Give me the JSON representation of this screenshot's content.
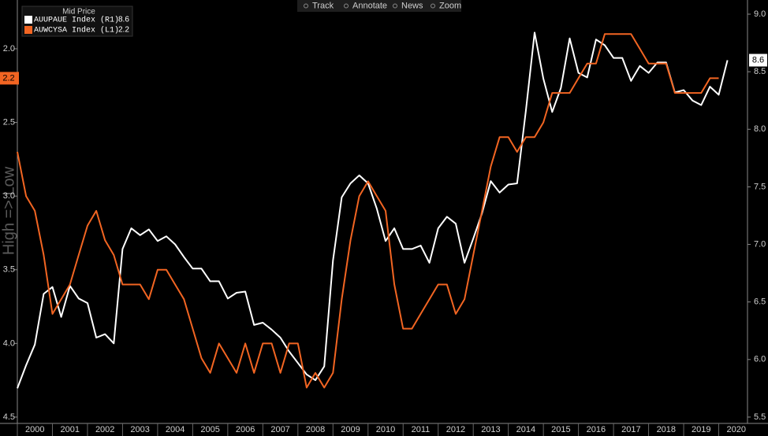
{
  "toolbar": [
    "Track",
    "Annotate",
    "News",
    "Zoom"
  ],
  "chart_data": {
    "type": "line",
    "legend_title": "Mid Price",
    "y_axis_label": "High => Low",
    "legend": "top-left",
    "y_inverted": true,
    "x": [
      2000,
      2000.25,
      2000.5,
      2000.75,
      2001,
      2001.25,
      2001.5,
      2001.75,
      2002,
      2002.25,
      2002.5,
      2002.75,
      2003,
      2003.25,
      2003.5,
      2003.75,
      2004,
      2004.25,
      2004.5,
      2004.75,
      2005,
      2005.25,
      2005.5,
      2005.75,
      2006,
      2006.25,
      2006.5,
      2006.75,
      2007,
      2007.25,
      2007.5,
      2007.75,
      2008,
      2008.25,
      2008.5,
      2008.75,
      2009,
      2009.25,
      2009.5,
      2009.75,
      2010,
      2010.25,
      2010.5,
      2010.75,
      2011,
      2011.25,
      2011.5,
      2011.75,
      2012,
      2012.25,
      2012.5,
      2012.75,
      2013,
      2013.25,
      2013.5,
      2013.75,
      2014,
      2014.25,
      2014.5,
      2014.75,
      2015,
      2015.25,
      2015.5,
      2015.75,
      2016,
      2016.25,
      2016.5,
      2016.75,
      2017,
      2017.25,
      2017.5,
      2017.75,
      2018,
      2018.25,
      2018.5,
      2018.75,
      2019,
      2019.25,
      2019.5,
      2019.75,
      2020,
      2020.25
    ],
    "xlim": [
      2000,
      2020.82
    ],
    "xticks": [
      2000,
      2001,
      2002,
      2003,
      2004,
      2005,
      2006,
      2007,
      2008,
      2009,
      2010,
      2011,
      2012,
      2013,
      2014,
      2015,
      2016,
      2017,
      2018,
      2019,
      2020
    ],
    "ylim": [
      1.669,
      4.543
    ],
    "yticks": [
      {
        "value": 2,
        "label": "2.0"
      },
      2.5,
      {
        "value": 3,
        "label": "3.0"
      },
      3.5,
      {
        "value": 4,
        "label": "4.0"
      },
      4.5
    ],
    "y2lim": [
      5.445,
      9.123
    ],
    "y2ticks": [
      5.5,
      {
        "value": 6,
        "label": "6.0"
      },
      6.5,
      {
        "value": 7,
        "label": "7.0"
      },
      7.5,
      {
        "value": 8,
        "label": "8.0"
      },
      8.5,
      {
        "value": 9,
        "label": "9.0"
      }
    ],
    "series": [
      {
        "name": "AUUPAUE Index (R1)",
        "color": "#ffffff",
        "axis": "y2",
        "values": [
          5.75,
          5.95,
          6.13,
          6.57,
          6.63,
          6.37,
          6.64,
          6.53,
          6.49,
          6.19,
          6.22,
          6.14,
          6.96,
          7.14,
          7.08,
          7.13,
          7.03,
          7.07,
          7.0,
          6.89,
          6.79,
          6.79,
          6.68,
          6.68,
          6.53,
          6.58,
          6.59,
          6.3,
          6.32,
          6.26,
          6.19,
          6.07,
          5.97,
          5.87,
          5.82,
          5.94,
          6.86,
          7.41,
          7.53,
          7.6,
          7.53,
          7.31,
          7.03,
          7.14,
          6.96,
          6.96,
          6.99,
          6.84,
          7.14,
          7.24,
          7.18,
          6.84,
          7.05,
          7.27,
          7.55,
          7.45,
          7.52,
          7.53,
          8.16,
          8.84,
          8.44,
          8.15,
          8.36,
          8.79,
          8.49,
          8.45,
          8.78,
          8.73,
          8.62,
          8.62,
          8.42,
          8.55,
          8.49,
          8.58,
          8.58,
          8.32,
          8.34,
          8.25,
          8.21,
          8.37,
          8.3,
          8.6
        ]
      },
      {
        "name": "AUWCYSA Index (L1)",
        "color": "#f26522",
        "axis": "y",
        "values": [
          2.7,
          3.0,
          3.1,
          3.4,
          3.8,
          3.7,
          3.6,
          3.4,
          3.2,
          3.1,
          3.3,
          3.4,
          3.6,
          3.6,
          3.6,
          3.7,
          3.5,
          3.5,
          3.6,
          3.7,
          3.9,
          4.1,
          4.2,
          4.0,
          4.1,
          4.2,
          4.0,
          4.2,
          4.0,
          4.0,
          4.2,
          4.0,
          4.0,
          4.3,
          4.2,
          4.3,
          4.2,
          3.7,
          3.3,
          3.0,
          2.9,
          3.0,
          3.1,
          3.6,
          3.9,
          3.9,
          3.8,
          3.7,
          3.6,
          3.6,
          3.8,
          3.7,
          3.4,
          3.1,
          2.8,
          2.6,
          2.6,
          2.7,
          2.6,
          2.6,
          2.5,
          2.3,
          2.3,
          2.3,
          2.2,
          2.1,
          2.1,
          1.9,
          1.9,
          1.9,
          1.9,
          2.0,
          2.1,
          2.1,
          2.1,
          2.3,
          2.3,
          2.3,
          2.3,
          2.2,
          2.2,
          null
        ]
      }
    ]
  }
}
